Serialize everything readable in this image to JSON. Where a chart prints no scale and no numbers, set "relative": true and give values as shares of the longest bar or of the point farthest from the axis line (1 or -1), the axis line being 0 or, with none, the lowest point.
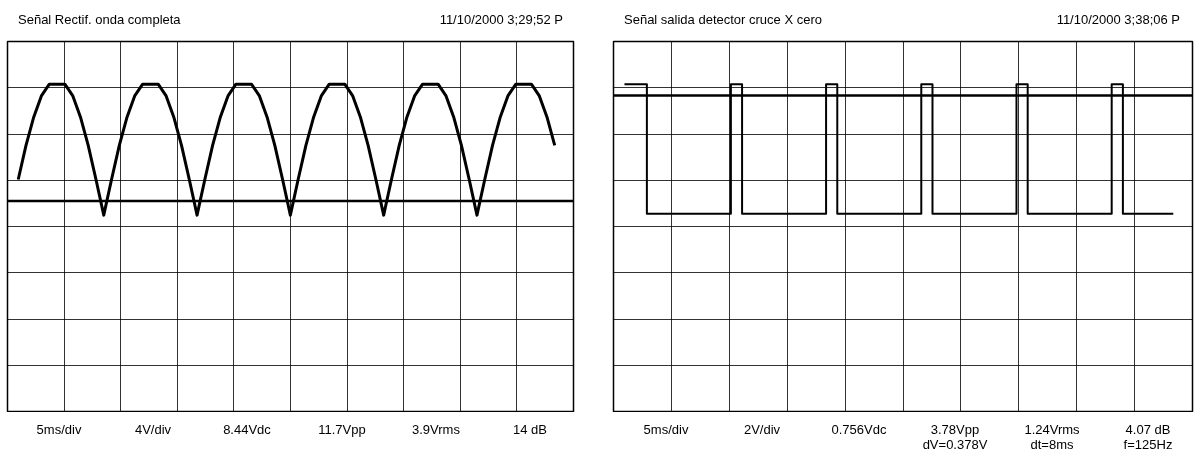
{
  "chart_data": [
    {
      "type": "line",
      "title": "Señal Rectif. onda completa",
      "subtitle": "11/10/2000  3;29;52 P",
      "relative": true,
      "grid": true,
      "tick_labels": false,
      "marker": "none",
      "line_style": "solid",
      "categories": [
        null,
        null,
        null,
        null,
        null,
        null,
        null,
        null,
        null,
        null,
        null,
        null,
        null,
        null,
        null,
        null,
        null,
        null,
        null,
        null,
        null,
        null,
        null,
        null,
        null,
        null,
        null,
        null,
        null,
        null,
        null,
        null,
        null,
        null,
        null,
        null,
        null,
        null,
        null,
        null,
        null,
        null,
        null,
        null,
        null,
        null,
        null,
        null,
        null,
        null,
        null,
        null,
        null,
        null,
        null,
        null,
        null,
        null,
        null,
        null,
        null,
        null,
        null,
        null,
        null,
        null,
        null,
        null,
        null,
        null
      ],
      "series": [
        {
          "color": "#000000",
          "values": [
            0.33,
            0.57,
            0.77,
            0.92,
            1,
            1,
            1,
            0.92,
            0.77,
            0.57,
            0.33,
            0.08,
            0.33,
            0.57,
            0.77,
            0.92,
            1,
            1,
            1,
            0.92,
            0.77,
            0.57,
            0.33,
            0.08,
            0.33,
            0.57,
            0.77,
            0.92,
            1,
            1,
            1,
            0.92,
            0.77,
            0.57,
            0.33,
            0.08,
            0.33,
            0.57,
            0.77,
            0.92,
            1,
            1,
            1,
            0.92,
            0.77,
            0.57,
            0.33,
            0.08,
            0.33,
            0.57,
            0.77,
            0.92,
            1,
            1,
            1,
            0.92,
            0.77,
            0.57,
            0.33,
            0.08,
            0.33,
            0.57,
            0.77,
            0.92,
            1,
            1,
            1,
            0.92,
            0.77,
            0.57
          ]
        }
      ],
      "ref_lines": [
        {
          "axis": "y",
          "value": 0.18,
          "color": "#000000"
        }
      ],
      "annotations": [
        "5ms/div",
        "4V/div",
        "8.44Vdc",
        "11.7Vpp",
        "3.9Vrms",
        "14 dB"
      ]
    },
    {
      "type": "step",
      "title": "Señal salida detector cruce X cero",
      "subtitle": "11/10/2000  3;38;06 P",
      "relative": true,
      "grid": true,
      "tick_labels": false,
      "marker": "none",
      "line_style": "solid",
      "categories": [
        null,
        null,
        null,
        null,
        null,
        null,
        null,
        null,
        null,
        null,
        null,
        null,
        null,
        null,
        null,
        null,
        null,
        null,
        null,
        null,
        null,
        null,
        null,
        null,
        null,
        null,
        null,
        null,
        null,
        null,
        null,
        null,
        null,
        null,
        null,
        null,
        null,
        null,
        null,
        null,
        null,
        null,
        null,
        null,
        null,
        null,
        null,
        null,
        null,
        null,
        null,
        null,
        null,
        null,
        null,
        null,
        null,
        null,
        null,
        null,
        null,
        null,
        null,
        null,
        null,
        null,
        null,
        null,
        null,
        null,
        null,
        null,
        null,
        null,
        null,
        null,
        null,
        null,
        null,
        null,
        null,
        null,
        null,
        null,
        null,
        null,
        null,
        null,
        null,
        null,
        null,
        null,
        null,
        null,
        null,
        null,
        null,
        null,
        null
      ],
      "series": [
        {
          "color": "#000000",
          "values": [
            1,
            1,
            1,
            1,
            0.09,
            0.09,
            0.09,
            0.09,
            0.09,
            0.09,
            0.09,
            0.09,
            0.09,
            0.09,
            0.09,
            0.09,
            0.09,
            0.09,
            0.09,
            1,
            1,
            0.09,
            0.09,
            0.09,
            0.09,
            0.09,
            0.09,
            0.09,
            0.09,
            0.09,
            0.09,
            0.09,
            0.09,
            0.09,
            0.09,
            0.09,
            1,
            1,
            0.09,
            0.09,
            0.09,
            0.09,
            0.09,
            0.09,
            0.09,
            0.09,
            0.09,
            0.09,
            0.09,
            0.09,
            0.09,
            0.09,
            0.09,
            1,
            1,
            0.09,
            0.09,
            0.09,
            0.09,
            0.09,
            0.09,
            0.09,
            0.09,
            0.09,
            0.09,
            0.09,
            0.09,
            0.09,
            0.09,
            0.09,
            1,
            1,
            0.09,
            0.09,
            0.09,
            0.09,
            0.09,
            0.09,
            0.09,
            0.09,
            0.09,
            0.09,
            0.09,
            0.09,
            0.09,
            0.09,
            0.09,
            1,
            1,
            0.09,
            0.09,
            0.09,
            0.09,
            0.09,
            0.09,
            0.09,
            0.09,
            0.09,
            0.09
          ]
        }
      ],
      "ref_lines": [
        {
          "axis": "y",
          "value": 0.92,
          "color": "#000000"
        }
      ],
      "annotations": [
        "5ms/div",
        "2V/div",
        "0.756Vdc",
        "3.78Vpp",
        "1.24Vrms",
        "4.07 dB",
        "dV=0.378V",
        "dt=8ms",
        "f=125Hz"
      ]
    }
  ]
}
